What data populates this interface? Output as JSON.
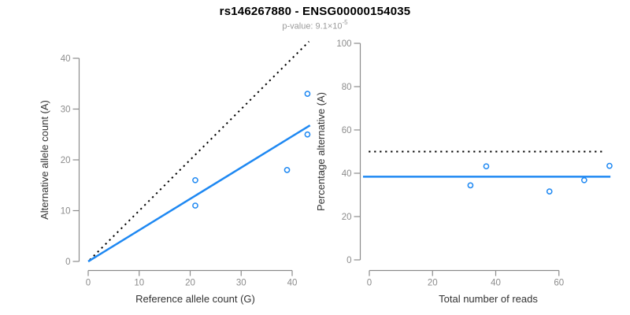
{
  "header": {
    "title": "rs146267880 - ENSG00000154035",
    "subtitle_prefix": "p-value: 9.1×10",
    "subtitle_exponent": "-5"
  },
  "palette": {
    "accent_blue": "#1E88F2",
    "axis_gray": "#8C8C8C",
    "tick_label_gray": "#8C8C8C",
    "axis_label_dark": "#333333",
    "subtitle_gray": "#9A9A9A",
    "line_black": "#000000",
    "background": "#FFFFFF"
  },
  "chart_data": [
    {
      "type": "scatter",
      "panel": "left",
      "xlabel": "Reference allele count (G)",
      "ylabel": "Alternative allele count (A)",
      "xticks": [
        0,
        10,
        20,
        30,
        40
      ],
      "yticks": [
        0,
        10,
        20,
        30,
        40
      ],
      "xlim": [
        0,
        43.5
      ],
      "ylim": [
        0,
        43.5
      ],
      "grid": false,
      "points": [
        [
          21,
          16
        ],
        [
          21,
          11
        ],
        [
          39,
          18
        ],
        [
          43,
          25
        ],
        [
          43,
          33
        ]
      ],
      "lines": [
        {
          "name": "identity-line",
          "role": "y equals x (50% reference)",
          "from": [
            0.3,
            0.3
          ],
          "to": [
            43.3,
            43.3
          ],
          "dashed": true,
          "color": "#000000",
          "width": 2
        },
        {
          "name": "fit-line",
          "role": "fitted allelic ratio",
          "from": [
            0,
            0
          ],
          "to": [
            43.5,
            26.8
          ],
          "dashed": false,
          "color": "#1E88F2",
          "width": 2.5
        }
      ]
    },
    {
      "type": "scatter",
      "panel": "right",
      "xlabel": "Total number of reads",
      "ylabel": "Percentage alternative (A)",
      "xticks": [
        0,
        20,
        40,
        60
      ],
      "yticks": [
        0,
        20,
        40,
        60,
        80,
        100
      ],
      "xlim": [
        0,
        76.5
      ],
      "ylim": [
        0,
        100
      ],
      "grid": false,
      "points": [
        [
          32,
          34.4
        ],
        [
          37,
          43.2
        ],
        [
          57,
          31.6
        ],
        [
          68,
          36.8
        ],
        [
          76,
          43.4
        ]
      ],
      "lines": [
        {
          "name": "null-line",
          "role": "50% expectation",
          "from": [
            -0.2,
            50
          ],
          "to": [
            74.5,
            50
          ],
          "dashed": true,
          "color": "#000000",
          "width": 2
        },
        {
          "name": "fit-line",
          "role": "mean percentage alternative",
          "from": [
            -2,
            38.4
          ],
          "to": [
            76.3,
            38.4
          ],
          "dashed": false,
          "color": "#1E88F2",
          "width": 2.5
        }
      ]
    }
  ]
}
